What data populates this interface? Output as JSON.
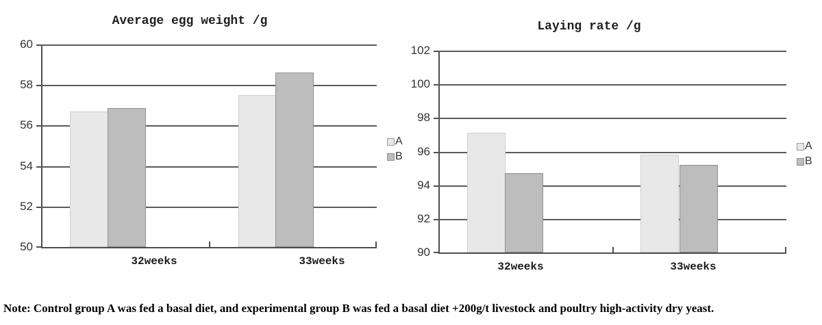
{
  "chart_data": [
    {
      "type": "bar",
      "title": "Average egg weight /g",
      "categories": [
        "32weeks",
        "33weeks"
      ],
      "series": [
        {
          "name": "A",
          "values": [
            56.7,
            57.5
          ]
        },
        {
          "name": "B",
          "values": [
            56.85,
            58.6
          ]
        }
      ],
      "ylim": [
        50,
        60
      ],
      "yticks": [
        60,
        58,
        56,
        54,
        52,
        50
      ],
      "xlabel": "",
      "ylabel": "",
      "grid": true,
      "legend_position": "right"
    },
    {
      "type": "bar",
      "title": "Laying rate /g",
      "categories": [
        "32weeks",
        "33weeks"
      ],
      "series": [
        {
          "name": "A",
          "values": [
            97.1,
            95.8
          ]
        },
        {
          "name": "B",
          "values": [
            94.7,
            95.2
          ]
        }
      ],
      "ylim": [
        90,
        102
      ],
      "yticks": [
        102,
        100,
        98,
        96,
        94,
        92,
        90
      ],
      "xlabel": "",
      "ylabel": "",
      "grid": true,
      "legend_position": "right"
    }
  ],
  "colors": {
    "series_a_fill": "#e8e8e8",
    "series_a_border": "#cfcfcf",
    "series_b_fill": "#bdbdbd",
    "series_b_border": "#8f8f8f",
    "gridline": "#5a5a5a",
    "axis": "#4d4d4d",
    "tick_label": "#333333"
  },
  "note": "Note: Control group A was fed a basal diet, and experimental group B was fed a basal diet +200g/t livestock and poultry high-activity dry yeast."
}
